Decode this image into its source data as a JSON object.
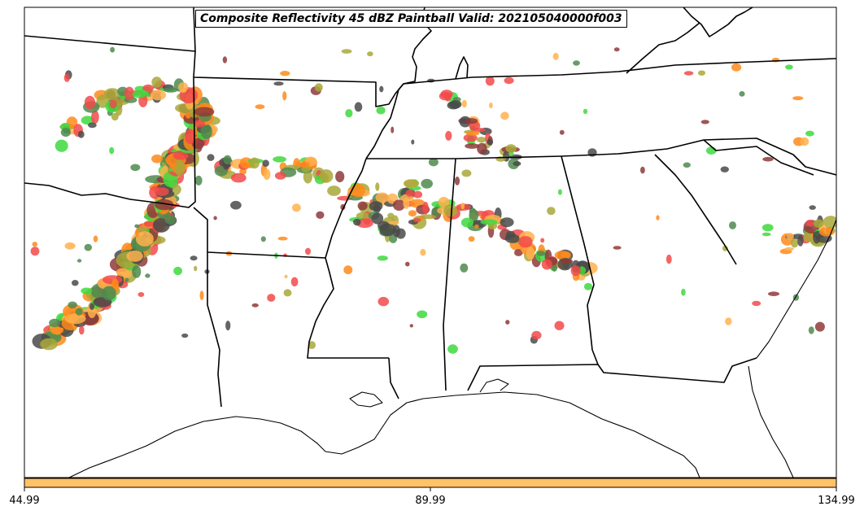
{
  "title": "Composite Reflectivity 45 dBZ Paintball Valid: 202105040000f003",
  "colorbar": {
    "color": "#ffc266",
    "ticks": [
      "44.99",
      "89.99",
      "134.99"
    ]
  },
  "palette": {
    "red": "#f24a4a",
    "dark_red": "#8e3a3a",
    "orange": "#ff8a1a",
    "light_orange": "#ffb24d",
    "green": "#3ed93e",
    "dark_green": "#4f8a4f",
    "olive": "#a8a83a",
    "dark_gray": "#4a4a4a"
  },
  "map_layers": [
    "state-borders",
    "coastline",
    "reflectivity-paintball"
  ]
}
